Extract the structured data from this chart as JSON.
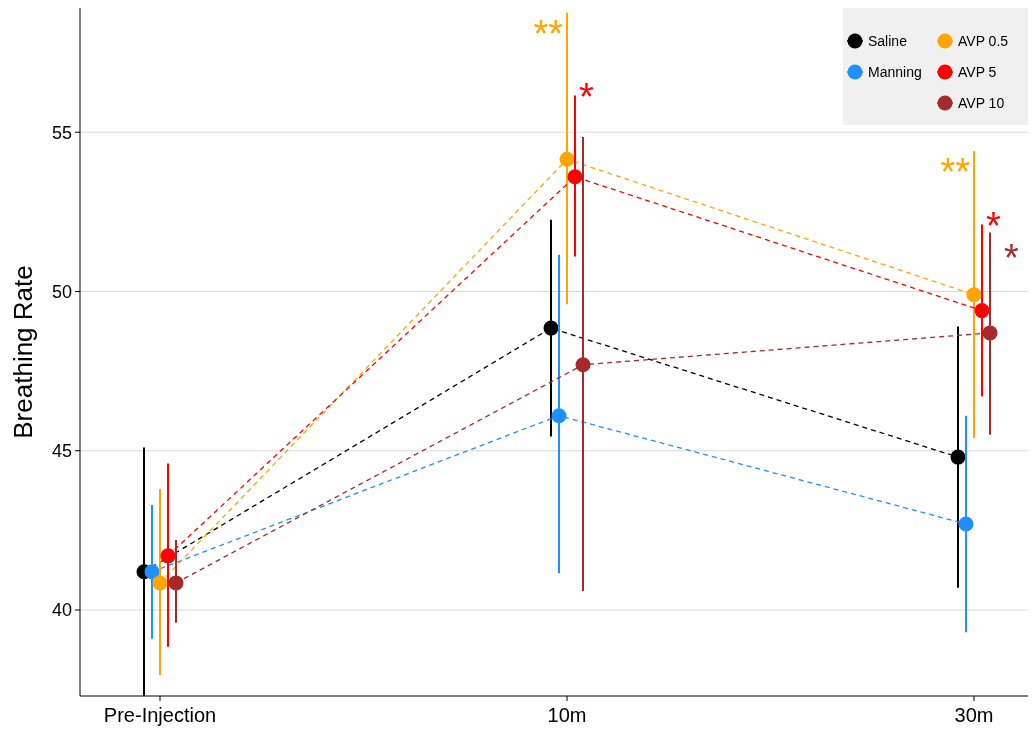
{
  "chart_data": {
    "type": "line",
    "ylabel": "Breathing Rate",
    "categories": [
      "Pre-Injection",
      "10m",
      "30m"
    ],
    "ylim": [
      37.3,
      58.9
    ],
    "yticks": [
      40,
      45,
      50,
      55
    ],
    "grid": "y",
    "legend": "top right",
    "marker": "circle",
    "line_style": "dashed",
    "series": [
      {
        "name": "Saline",
        "color": "#000000",
        "values": [
          41.2,
          48.85,
          44.8
        ],
        "errors": [
          [
            37.3,
            45.1
          ],
          [
            45.45,
            52.25
          ],
          [
            40.7,
            48.9
          ]
        ]
      },
      {
        "name": "Manning",
        "color": "#1e90ff",
        "values": [
          41.2,
          46.1,
          42.7
        ],
        "errors": [
          [
            39.1,
            43.3
          ],
          [
            41.15,
            51.15
          ],
          [
            39.3,
            46.1
          ]
        ]
      },
      {
        "name": "AVP 0.5",
        "color": "#ffa500",
        "values": [
          40.85,
          54.15,
          49.9
        ],
        "errors": [
          [
            37.95,
            43.8
          ],
          [
            49.6,
            58.75
          ],
          [
            45.4,
            54.4
          ]
        ]
      },
      {
        "name": "AVP 5",
        "color": "#ff0000",
        "values": [
          41.7,
          53.6,
          49.4
        ],
        "errors": [
          [
            38.85,
            44.6
          ],
          [
            51.1,
            56.15
          ],
          [
            46.7,
            52.1
          ]
        ]
      },
      {
        "name": "AVP 10",
        "color": "#a52a2a",
        "values": [
          40.85,
          47.7,
          48.7
        ],
        "errors": [
          [
            39.6,
            42.2
          ],
          [
            40.6,
            54.85
          ],
          [
            45.5,
            51.85
          ]
        ]
      }
    ],
    "annotations": [
      {
        "text": "**",
        "x": "10m",
        "y": 58.75
      },
      {
        "text": "*",
        "x": "10m",
        "y": 56.15
      },
      {
        "text": "**",
        "x": "30m",
        "y": 54.4
      },
      {
        "text": "*",
        "x": "30m",
        "y": 52.1
      },
      {
        "text": "*",
        "x": "30m",
        "y": 51.85
      }
    ]
  }
}
